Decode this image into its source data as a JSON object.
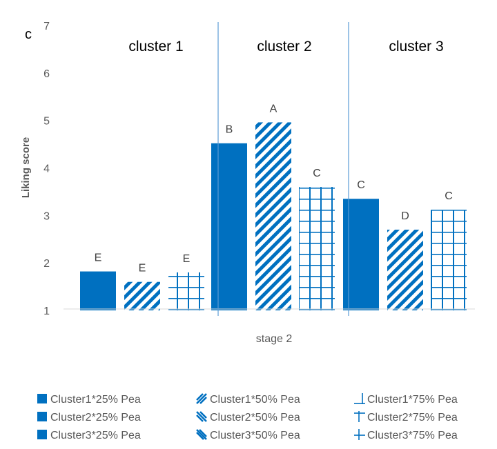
{
  "chart_data": {
    "type": "bar",
    "panel_letter": "c",
    "ylabel": "Liking score",
    "xlabel": "",
    "categories": [
      "stage 2"
    ],
    "ylim": [
      1,
      7
    ],
    "yticks": [
      1,
      2,
      3,
      4,
      5,
      6,
      7
    ],
    "groups": [
      "cluster 1",
      "cluster 2",
      "cluster 3"
    ],
    "series": [
      {
        "name": "Cluster1*25% Pea",
        "cluster": 0,
        "pattern": "solid",
        "values": [
          1.82
        ],
        "label": "E"
      },
      {
        "name": "Cluster1*50% Pea",
        "cluster": 0,
        "pattern": "diagonal",
        "values": [
          1.6
        ],
        "label": "E"
      },
      {
        "name": "Cluster1*75% Pea",
        "cluster": 0,
        "pattern": "grid",
        "values": [
          1.8
        ],
        "label": "E"
      },
      {
        "name": "Cluster2*25% Pea",
        "cluster": 1,
        "pattern": "solid",
        "values": [
          4.52
        ],
        "label": "B"
      },
      {
        "name": "Cluster2*50% Pea",
        "cluster": 1,
        "pattern": "diagonal",
        "values": [
          4.96
        ],
        "label": "A"
      },
      {
        "name": "Cluster2*75% Pea",
        "cluster": 1,
        "pattern": "grid",
        "values": [
          3.6
        ],
        "label": "C"
      },
      {
        "name": "Cluster3*25% Pea",
        "cluster": 2,
        "pattern": "solid",
        "values": [
          3.35
        ],
        "label": "C"
      },
      {
        "name": "Cluster3*50% Pea",
        "cluster": 2,
        "pattern": "diagonal",
        "values": [
          2.7
        ],
        "label": "D"
      },
      {
        "name": "Cluster3*75% Pea",
        "cluster": 2,
        "pattern": "grid",
        "values": [
          3.12
        ],
        "label": "C"
      }
    ],
    "grid": false,
    "legend": "bottom",
    "color": "#0070c0"
  }
}
